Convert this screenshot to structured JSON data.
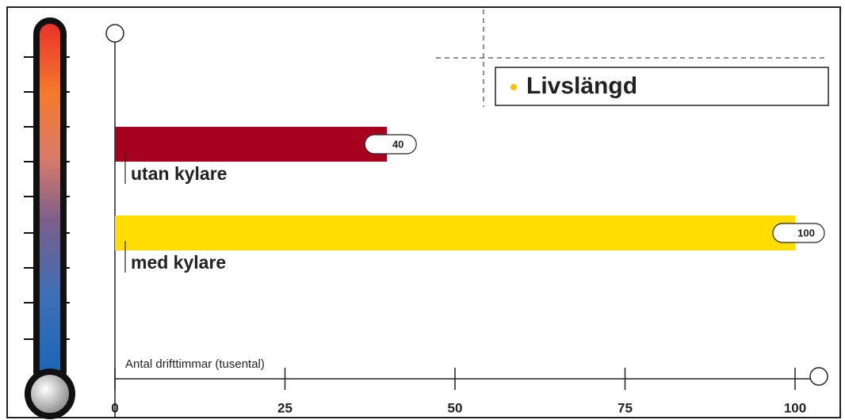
{
  "chart_data": {
    "type": "bar",
    "orientation": "horizontal",
    "title": "Livslängd",
    "title_bullet_color": "#f5c400",
    "categories": [
      "utan kylare",
      "med kylare"
    ],
    "values": [
      40,
      100
    ],
    "colors": [
      "#a8001f",
      "#ffdd00"
    ],
    "x_label": "Antal drifttimmar (tusental)",
    "xlim": [
      0,
      100
    ],
    "xticks": [
      0,
      25,
      50,
      75,
      100
    ],
    "grid": false
  }
}
